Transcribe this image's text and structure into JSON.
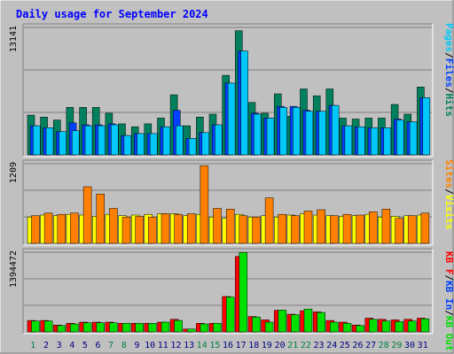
{
  "title": "Daily usage for September 2024",
  "colors": {
    "bg": "#c0c0c0",
    "plot_bg": "#c0c0c0",
    "title": "#0000ff",
    "hits": "#00805c",
    "files": "#0040ff",
    "pages": "#00c8f8",
    "visits": "#ffff00",
    "sites": "#ff8000",
    "kb_in": "#00e000",
    "kb_out": "#ff0000",
    "weekend": "#008040",
    "weekday": "#000080",
    "grid": "#808080"
  },
  "side_labels": {
    "pages": "Pages",
    "files": "Files",
    "hits": "Hits",
    "sep": "/",
    "visits": "Visits",
    "sites": "Sites",
    "kb_out": "KB Out",
    "kb_in": "KB In",
    "kb_f": "KB F"
  },
  "chart_data": {
    "type": "bar",
    "categories": [
      "1",
      "2",
      "3",
      "4",
      "5",
      "6",
      "7",
      "8",
      "9",
      "10",
      "11",
      "12",
      "13",
      "14",
      "15",
      "16",
      "17",
      "18",
      "19",
      "20",
      "21",
      "22",
      "23",
      "24",
      "25",
      "26",
      "27",
      "28",
      "29",
      "30",
      "31"
    ],
    "weekend_days": [
      1,
      7,
      8,
      14,
      15,
      21,
      22,
      28,
      29
    ],
    "panels": [
      {
        "name": "hits-panel",
        "ymax_label": "13141",
        "ymax": 13141,
        "series": [
          {
            "name": "Hits",
            "values": [
              4100,
              3900,
              3600,
              4900,
              4900,
              4900,
              4300,
              3200,
              2900,
              3200,
              3800,
              6200,
              3000,
              3900,
              4200,
              8200,
              12800,
              5400,
              4300,
              6300,
              4000,
              6800,
              6100,
              6800,
              3800,
              3700,
              3800,
              3800,
              5200,
              4200,
              7000
            ]
          },
          {
            "name": "Files",
            "values": [
              3000,
              2800,
              2400,
              3300,
              3100,
              3100,
              3200,
              2000,
              2200,
              2200,
              2900,
              4600,
              1700,
              2300,
              3100,
              7400,
              10700,
              4300,
              3800,
              5000,
              5000,
              4600,
              4500,
              5100,
              3000,
              2900,
              2800,
              2800,
              3700,
              3400,
              5900
            ]
          },
          {
            "name": "Pages",
            "values": [
              3000,
              2800,
              2400,
              2500,
              3000,
              3000,
              3100,
              2000,
              2200,
              2200,
              2900,
              3000,
              1700,
              2300,
              3100,
              7400,
              10700,
              4200,
              3800,
              4900,
              4900,
              4500,
              4500,
              5100,
              3000,
              2900,
              2800,
              2800,
              3600,
              3400,
              5900
            ]
          }
        ]
      },
      {
        "name": "sites-panel",
        "ymax_label": "1209",
        "ymax": 1209,
        "series": [
          {
            "name": "Visits",
            "values": [
              400,
              430,
              420,
              440,
              430,
              410,
              440,
              420,
              430,
              440,
              450,
              450,
              420,
              440,
              400,
              380,
              440,
              400,
              420,
              400,
              430,
              450,
              430,
              420,
              410,
              420,
              440,
              400,
              410,
              420,
              430
            ]
          },
          {
            "name": "Sites",
            "values": [
              420,
              460,
              440,
              460,
              860,
              750,
              530,
              400,
              410,
              400,
              450,
              440,
              450,
              1180,
              530,
              520,
              420,
              400,
              690,
              440,
              420,
              490,
              510,
              420,
              440,
              430,
              480,
              520,
              380,
              420,
              460
            ]
          }
        ]
      },
      {
        "name": "kbytes-panel",
        "ymax_label": "1394472",
        "ymax": 1394472,
        "series": [
          {
            "name": "KB F",
            "values": [
              200000,
              200000,
              120000,
              150000,
              170000,
              170000,
              170000,
              150000,
              150000,
              150000,
              170000,
              220000,
              50000,
              150000,
              150000,
              620000,
              1320000,
              270000,
              210000,
              380000,
              310000,
              370000,
              350000,
              200000,
              170000,
              120000,
              240000,
              220000,
              210000,
              220000,
              240000
            ]
          },
          {
            "name": "KB In",
            "values": [
              190000,
              190000,
              110000,
              140000,
              160000,
              160000,
              160000,
              150000,
              150000,
              150000,
              170000,
              200000,
              50000,
              140000,
              150000,
              610000,
              1390000,
              260000,
              170000,
              380000,
              300000,
              400000,
              340000,
              170000,
              150000,
              110000,
              220000,
              190000,
              180000,
              190000,
              230000
            ]
          }
        ]
      }
    ]
  }
}
